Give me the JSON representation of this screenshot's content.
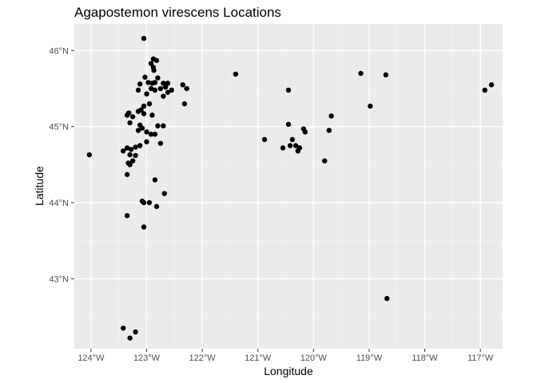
{
  "chart_data": {
    "type": "scatter",
    "title": "Agapostemon virescens Locations",
    "xlabel": "Longitude",
    "ylabel": "Latitude",
    "xlim": [
      -124.3,
      -116.6
    ],
    "ylim": [
      42.08,
      46.35
    ],
    "x_ticks": [
      {
        "value": -124,
        "label": "124°W"
      },
      {
        "value": -123,
        "label": "123°W"
      },
      {
        "value": -122,
        "label": "122°W"
      },
      {
        "value": -121,
        "label": "121°W"
      },
      {
        "value": -120,
        "label": "120°W"
      },
      {
        "value": -119,
        "label": "119°W"
      },
      {
        "value": -118,
        "label": "118°W"
      },
      {
        "value": -117,
        "label": "117°W"
      }
    ],
    "y_ticks": [
      {
        "value": 43,
        "label": "43°N"
      },
      {
        "value": 44,
        "label": "44°N"
      },
      {
        "value": 45,
        "label": "45°N"
      },
      {
        "value": 46,
        "label": "46°N"
      }
    ],
    "grid": true,
    "legend": "none",
    "colors": {
      "panel": "#ebebeb",
      "grid_major": "#ffffff",
      "point": "#000000"
    },
    "points": [
      [
        -123.05,
        46.16
      ],
      [
        -122.88,
        45.89
      ],
      [
        -122.82,
        45.87
      ],
      [
        -122.92,
        45.83
      ],
      [
        -122.88,
        45.78
      ],
      [
        -122.87,
        45.74
      ],
      [
        -123.03,
        45.65
      ],
      [
        -122.8,
        45.64
      ],
      [
        -123.12,
        45.56
      ],
      [
        -122.97,
        45.58
      ],
      [
        -122.9,
        45.57
      ],
      [
        -122.85,
        45.58
      ],
      [
        -122.7,
        45.57
      ],
      [
        -122.62,
        45.57
      ],
      [
        -122.66,
        45.52
      ],
      [
        -122.75,
        45.5
      ],
      [
        -122.85,
        45.48
      ],
      [
        -122.92,
        45.5
      ],
      [
        -122.55,
        45.48
      ],
      [
        -122.62,
        45.45
      ],
      [
        -122.7,
        45.4
      ],
      [
        -122.35,
        45.55
      ],
      [
        -122.28,
        45.5
      ],
      [
        -123.15,
        45.48
      ],
      [
        -123.0,
        45.43
      ],
      [
        -122.32,
        45.3
      ],
      [
        -122.95,
        45.3
      ],
      [
        -123.05,
        45.27
      ],
      [
        -123.1,
        45.22
      ],
      [
        -123.15,
        45.2
      ],
      [
        -123.32,
        45.18
      ],
      [
        -123.35,
        45.15
      ],
      [
        -123.25,
        45.13
      ],
      [
        -123.05,
        45.17
      ],
      [
        -122.9,
        45.15
      ],
      [
        -123.3,
        45.05
      ],
      [
        -123.12,
        45.02
      ],
      [
        -122.8,
        45.01
      ],
      [
        -122.7,
        45.01
      ],
      [
        -123.08,
        44.98
      ],
      [
        -123.15,
        44.95
      ],
      [
        -123.0,
        44.93
      ],
      [
        -122.92,
        44.9
      ],
      [
        -122.85,
        44.9
      ],
      [
        -123.0,
        44.8
      ],
      [
        -122.75,
        44.78
      ],
      [
        -123.12,
        44.75
      ],
      [
        -123.2,
        44.73
      ],
      [
        -123.35,
        44.72
      ],
      [
        -123.28,
        44.7
      ],
      [
        -123.42,
        44.68
      ],
      [
        -123.3,
        44.63
      ],
      [
        -123.2,
        44.62
      ],
      [
        -123.25,
        44.55
      ],
      [
        -123.33,
        44.52
      ],
      [
        -123.3,
        44.5
      ],
      [
        -123.35,
        44.37
      ],
      [
        -124.03,
        44.63
      ],
      [
        -122.85,
        44.3
      ],
      [
        -122.68,
        44.12
      ],
      [
        -123.08,
        44.02
      ],
      [
        -123.05,
        44.0
      ],
      [
        -122.95,
        44.0
      ],
      [
        -122.82,
        43.95
      ],
      [
        -123.35,
        43.83
      ],
      [
        -123.05,
        43.68
      ],
      [
        -123.42,
        42.35
      ],
      [
        -123.2,
        42.3
      ],
      [
        -123.3,
        42.22
      ],
      [
        -121.4,
        45.69
      ],
      [
        -120.45,
        45.48
      ],
      [
        -120.88,
        44.83
      ],
      [
        -120.45,
        45.03
      ],
      [
        -120.55,
        44.72
      ],
      [
        -120.42,
        44.75
      ],
      [
        -120.38,
        44.83
      ],
      [
        -120.32,
        44.75
      ],
      [
        -120.25,
        44.72
      ],
      [
        -120.28,
        44.68
      ],
      [
        -120.18,
        44.97
      ],
      [
        -120.15,
        44.93
      ],
      [
        -119.8,
        44.55
      ],
      [
        -119.72,
        44.95
      ],
      [
        -119.68,
        45.14
      ],
      [
        -119.15,
        45.7
      ],
      [
        -118.98,
        45.27
      ],
      [
        -118.7,
        45.68
      ],
      [
        -118.68,
        42.74
      ],
      [
        -116.92,
        45.48
      ],
      [
        -116.8,
        45.55
      ]
    ]
  }
}
